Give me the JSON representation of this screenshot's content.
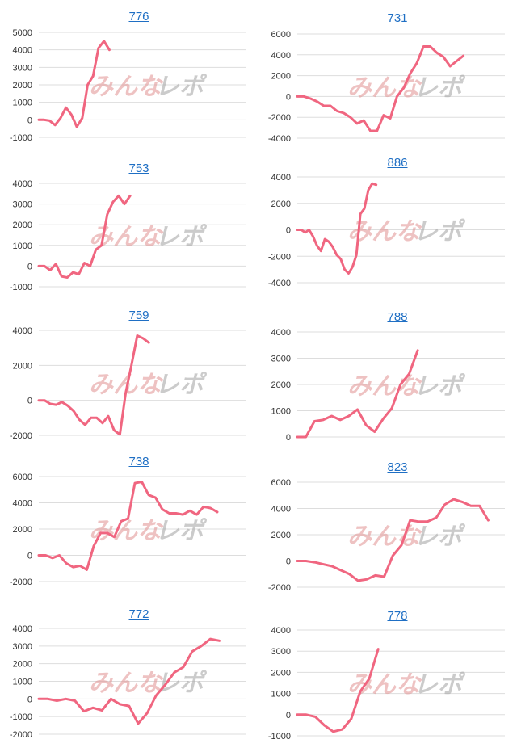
{
  "colors": {
    "line": "#f06680",
    "axis": "#dddddd",
    "tick_text": "#333333",
    "title": "#1f6fc4",
    "wm_pink": "#e39a9a",
    "wm_gray": "#a9a9a9"
  },
  "watermark": {
    "part1": "みんな",
    "part2": "レポ"
  },
  "charts": [
    {
      "title": "776",
      "chart_data": {
        "type": "line",
        "yticks": [
          5000,
          4000,
          3000,
          2000,
          1000,
          0,
          -1000
        ],
        "ylim": [
          -1000,
          5000
        ],
        "values": [
          0,
          0,
          -50,
          -300,
          100,
          700,
          300,
          -400,
          100,
          2000,
          2500,
          4100,
          4500,
          4000
        ]
      }
    },
    {
      "title": "731",
      "chart_data": {
        "type": "line",
        "yticks": [
          6000,
          4000,
          2000,
          0,
          -2000,
          -4000
        ],
        "ylim": [
          -4000,
          6000
        ],
        "values": [
          0,
          0,
          -200,
          -500,
          -900,
          -900,
          -1400,
          -1600,
          -2000,
          -2600,
          -2300,
          -3300,
          -3300,
          -1800,
          -2100,
          0,
          800,
          2200,
          3200,
          4800,
          4800,
          4200,
          3800,
          2900,
          3400,
          3900
        ]
      }
    },
    {
      "title": "753",
      "chart_data": {
        "type": "line",
        "yticks": [
          4000,
          3000,
          2000,
          1000,
          0,
          -1000
        ],
        "ylim": [
          -1000,
          4000
        ],
        "values": [
          0,
          0,
          -200,
          100,
          -500,
          -550,
          -300,
          -400,
          150,
          0,
          800,
          1000,
          2500,
          3100,
          3400,
          3000,
          3400
        ]
      }
    },
    {
      "title": "886",
      "chart_data": {
        "type": "line",
        "yticks": [
          4000,
          2000,
          0,
          -2000,
          -4000
        ],
        "ylim": [
          -4000,
          4000
        ],
        "values": [
          0,
          0,
          -200,
          0,
          -500,
          -1200,
          -1600,
          -700,
          -900,
          -1300,
          -1900,
          -2200,
          -3000,
          -3300,
          -2800,
          -1900,
          1200,
          1600,
          3000,
          3500,
          3400
        ]
      }
    },
    {
      "title": "759",
      "chart_data": {
        "type": "line",
        "yticks": [
          4000,
          2000,
          0,
          -2000
        ],
        "ylim": [
          -2000,
          4000
        ],
        "values": [
          0,
          0,
          -200,
          -250,
          -100,
          -300,
          -600,
          -1100,
          -1400,
          -1000,
          -1000,
          -1300,
          -900,
          -1700,
          -1950,
          400,
          2000,
          3700,
          3550,
          3300
        ]
      }
    },
    {
      "title": "788",
      "chart_data": {
        "type": "line",
        "yticks": [
          4000,
          3000,
          2000,
          1000,
          0
        ],
        "ylim": [
          0,
          4000
        ],
        "values": [
          0,
          0,
          600,
          650,
          800,
          650,
          800,
          1050,
          450,
          200,
          700,
          1100,
          2000,
          2400,
          3300
        ]
      }
    },
    {
      "title": "738",
      "chart_data": {
        "type": "line",
        "yticks": [
          6000,
          4000,
          2000,
          0,
          -2000
        ],
        "ylim": [
          -2000,
          6000
        ],
        "values": [
          0,
          0,
          -200,
          0,
          -600,
          -900,
          -800,
          -1100,
          700,
          1700,
          1700,
          1400,
          2600,
          2800,
          5500,
          5600,
          4600,
          4400,
          3500,
          3200,
          3200,
          3100,
          3400,
          3100,
          3700,
          3600,
          3300
        ]
      }
    },
    {
      "title": "823",
      "chart_data": {
        "type": "line",
        "yticks": [
          6000,
          4000,
          2000,
          0,
          -2000
        ],
        "ylim": [
          -2000,
          6000
        ],
        "values": [
          0,
          0,
          -100,
          -250,
          -400,
          -700,
          -1000,
          -1500,
          -1400,
          -1100,
          -1200,
          400,
          1200,
          3100,
          3000,
          3000,
          3300,
          4300,
          4700,
          4500,
          4200,
          4200,
          3100
        ]
      }
    },
    {
      "title": "772",
      "chart_data": {
        "type": "line",
        "yticks": [
          4000,
          3000,
          2000,
          1000,
          0,
          -1000,
          -2000
        ],
        "ylim": [
          -2000,
          4000
        ],
        "values": [
          0,
          0,
          -100,
          0,
          -100,
          -700,
          -500,
          -650,
          0,
          -300,
          -400,
          -1400,
          -800,
          200,
          800,
          1500,
          1800,
          2700,
          3000,
          3400,
          3300
        ]
      }
    },
    {
      "title": "778",
      "chart_data": {
        "type": "line",
        "yticks": [
          4000,
          3000,
          2000,
          1000,
          0,
          -1000
        ],
        "ylim": [
          -1000,
          4000
        ],
        "values": [
          0,
          0,
          -100,
          -500,
          -800,
          -700,
          -200,
          1100,
          1700,
          3100
        ]
      }
    }
  ]
}
